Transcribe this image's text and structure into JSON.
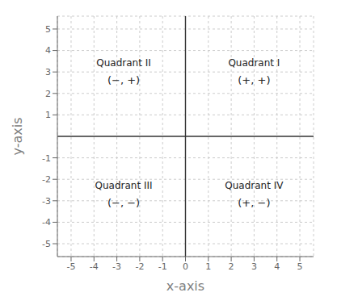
{
  "chart_data": {
    "type": "scatter",
    "xlabel": "x-axis",
    "ylabel": "y-axis",
    "xlim": [
      -5.6,
      5.6
    ],
    "ylim": [
      -5.6,
      5.6
    ],
    "xticks": [
      -5,
      -4,
      -3,
      -2,
      -1,
      0,
      1,
      2,
      3,
      4,
      5
    ],
    "yticks": [
      -5,
      -4,
      -3,
      -2,
      -1,
      1,
      2,
      3,
      4,
      5
    ],
    "grid": true,
    "annotations": [
      {
        "label": "Quadrant I",
        "sublabel": "(+, +)",
        "x": 3.0,
        "y": 3.2
      },
      {
        "label": "Quadrant II",
        "sublabel": "(−, +)",
        "x": -2.7,
        "y": 3.2
      },
      {
        "label": "Quadrant III",
        "sublabel": "(−, −)",
        "x": -2.7,
        "y": -2.5
      },
      {
        "label": "Quadrant IV",
        "sublabel": "(+, −)",
        "x": 3.0,
        "y": -2.5
      }
    ]
  }
}
